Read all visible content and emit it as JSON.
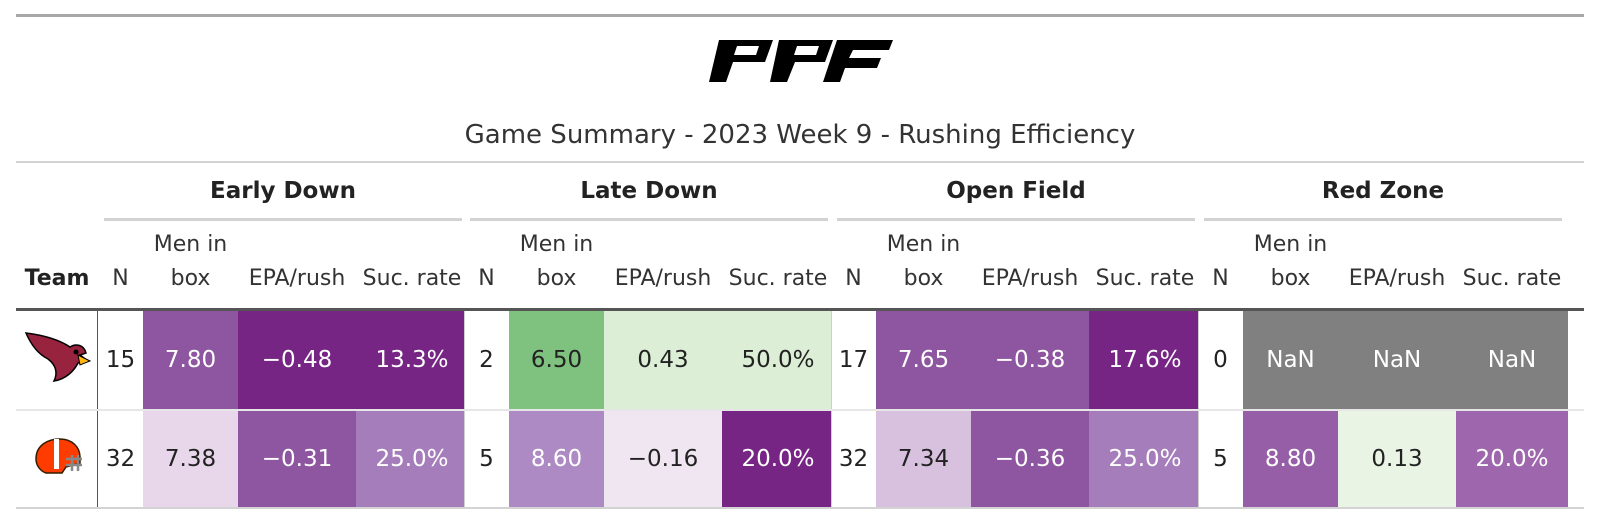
{
  "logo": {
    "text": "PFF",
    "icon": "pff-logo"
  },
  "title": "Game Summary - 2023 Week 9 - Rushing Efficiency",
  "team_header": "Team",
  "columns": {
    "n": "N",
    "men_in_box_line1": "Men in",
    "men_in_box_line2": "box",
    "epa": "EPA/rush",
    "suc": "Suc. rate"
  },
  "groups": [
    {
      "label": "Early Down"
    },
    {
      "label": "Late Down"
    },
    {
      "label": "Open Field"
    },
    {
      "label": "Red Zone"
    }
  ],
  "rows": [
    {
      "team": "Arizona Cardinals",
      "logo_icon": "cardinals-logo-icon",
      "cells": [
        {
          "v": "15",
          "bg": "#ffffff",
          "fg": "#222222"
        },
        {
          "v": "7.80",
          "bg": "#8e55a0",
          "fg": "#ffffff"
        },
        {
          "v": "−0.48",
          "bg": "#762584",
          "fg": "#ffffff"
        },
        {
          "v": "13.3%",
          "bg": "#762584",
          "fg": "#ffffff"
        },
        {
          "v": "2",
          "bg": "#ffffff",
          "fg": "#222222"
        },
        {
          "v": "6.50",
          "bg": "#7fc17e",
          "fg": "#222222"
        },
        {
          "v": "0.43",
          "bg": "#dcefd6",
          "fg": "#222222"
        },
        {
          "v": "50.0%",
          "bg": "#dcefd6",
          "fg": "#222222"
        },
        {
          "v": "17",
          "bg": "#ffffff",
          "fg": "#222222"
        },
        {
          "v": "7.65",
          "bg": "#8e55a0",
          "fg": "#ffffff"
        },
        {
          "v": "−0.38",
          "bg": "#8e55a0",
          "fg": "#ffffff"
        },
        {
          "v": "17.6%",
          "bg": "#762584",
          "fg": "#ffffff"
        },
        {
          "v": "0",
          "bg": "#ffffff",
          "fg": "#222222"
        },
        {
          "v": "NaN",
          "bg": "#808080",
          "fg": "#ffffff"
        },
        {
          "v": "NaN",
          "bg": "#808080",
          "fg": "#ffffff"
        },
        {
          "v": "NaN",
          "bg": "#808080",
          "fg": "#ffffff"
        }
      ]
    },
    {
      "team": "Cleveland Browns",
      "logo_icon": "browns-helmet-icon",
      "cells": [
        {
          "v": "32",
          "bg": "#ffffff",
          "fg": "#222222"
        },
        {
          "v": "7.38",
          "bg": "#e8d7ea",
          "fg": "#222222"
        },
        {
          "v": "−0.31",
          "bg": "#8e55a0",
          "fg": "#ffffff"
        },
        {
          "v": "25.0%",
          "bg": "#a57dba",
          "fg": "#ffffff"
        },
        {
          "v": "5",
          "bg": "#ffffff",
          "fg": "#222222"
        },
        {
          "v": "8.60",
          "bg": "#ad8ac4",
          "fg": "#ffffff"
        },
        {
          "v": "−0.16",
          "bg": "#f0e6f1",
          "fg": "#222222"
        },
        {
          "v": "20.0%",
          "bg": "#762584",
          "fg": "#ffffff"
        },
        {
          "v": "32",
          "bg": "#ffffff",
          "fg": "#222222"
        },
        {
          "v": "7.34",
          "bg": "#d8c1de",
          "fg": "#222222"
        },
        {
          "v": "−0.36",
          "bg": "#8e55a0",
          "fg": "#ffffff"
        },
        {
          "v": "25.0%",
          "bg": "#a57dba",
          "fg": "#ffffff"
        },
        {
          "v": "5",
          "bg": "#ffffff",
          "fg": "#222222"
        },
        {
          "v": "8.80",
          "bg": "#975ea8",
          "fg": "#ffffff"
        },
        {
          "v": "0.13",
          "bg": "#e9f4e5",
          "fg": "#222222"
        },
        {
          "v": "20.0%",
          "bg": "#9d66ad",
          "fg": "#ffffff"
        }
      ]
    }
  ]
}
